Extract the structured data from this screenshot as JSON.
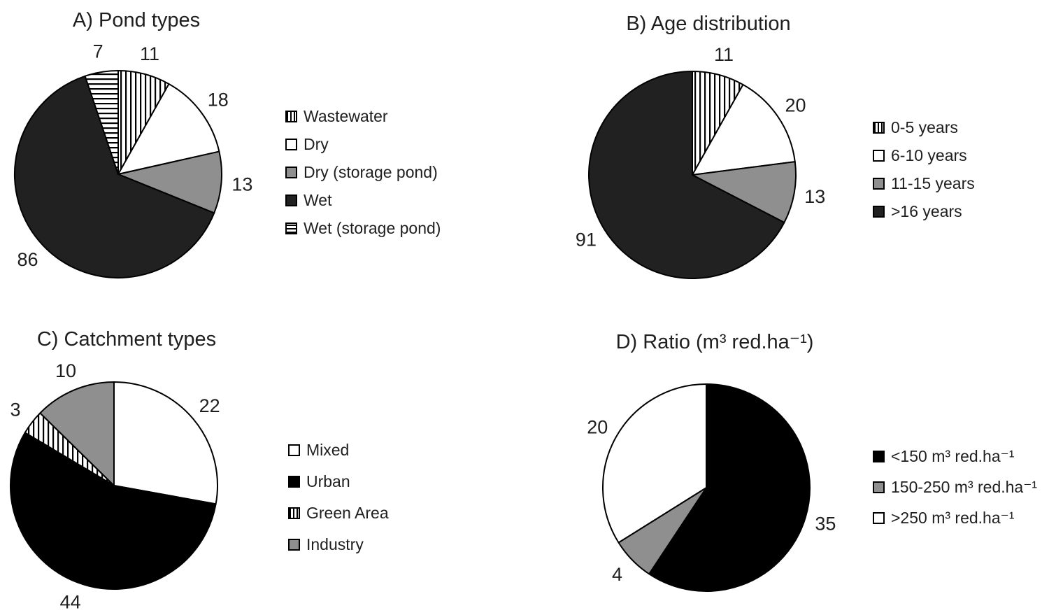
{
  "page": {
    "background": "#ffffff",
    "text_color": "#1f1f1f"
  },
  "palette": {
    "dark": "#212121",
    "black": "#000000",
    "gray": "#8f8f8f",
    "white": "#ffffff",
    "stroke": "#000000"
  },
  "chart_data": [
    {
      "id": "A",
      "type": "pie",
      "title": "A) Pond types",
      "start_angle_deg": 0,
      "direction": "clockwise",
      "legend_position": "right",
      "categories": [
        "Wastewater",
        "Dry",
        "Dry (storage pond)",
        "Wet",
        "Wet (storage pond)"
      ],
      "values": [
        11,
        18,
        13,
        86,
        7
      ],
      "fills": [
        "vstripe",
        "white",
        "gray",
        "dark",
        "hstripe"
      ]
    },
    {
      "id": "B",
      "type": "pie",
      "title": "B) Age distribution",
      "start_angle_deg": 0,
      "direction": "clockwise",
      "legend_position": "right",
      "categories": [
        "0-5 years",
        "6-10 years",
        "11-15 years",
        ">16 years"
      ],
      "values": [
        11,
        20,
        13,
        91
      ],
      "fills": [
        "vstripe",
        "white",
        "gray",
        "dark"
      ]
    },
    {
      "id": "C",
      "type": "pie",
      "title": "C) Catchment types",
      "start_angle_deg": 0,
      "direction": "clockwise",
      "legend_position": "right",
      "categories": [
        "Mixed",
        "Urban",
        "Green Area",
        "Industry"
      ],
      "values": [
        22,
        44,
        3,
        10
      ],
      "fills": [
        "white",
        "black",
        "vstripe",
        "gray"
      ]
    },
    {
      "id": "D",
      "type": "pie",
      "title": "D) Ratio (m³ red.ha⁻¹)",
      "start_angle_deg": 0,
      "direction": "clockwise",
      "legend_position": "right",
      "categories": [
        "<150 m³ red.ha⁻¹",
        "150-250 m³ red.ha⁻¹",
        ">250 m³ red.ha⁻¹"
      ],
      "values": [
        35,
        4,
        20
      ],
      "fills": [
        "black",
        "gray",
        "white"
      ]
    }
  ]
}
